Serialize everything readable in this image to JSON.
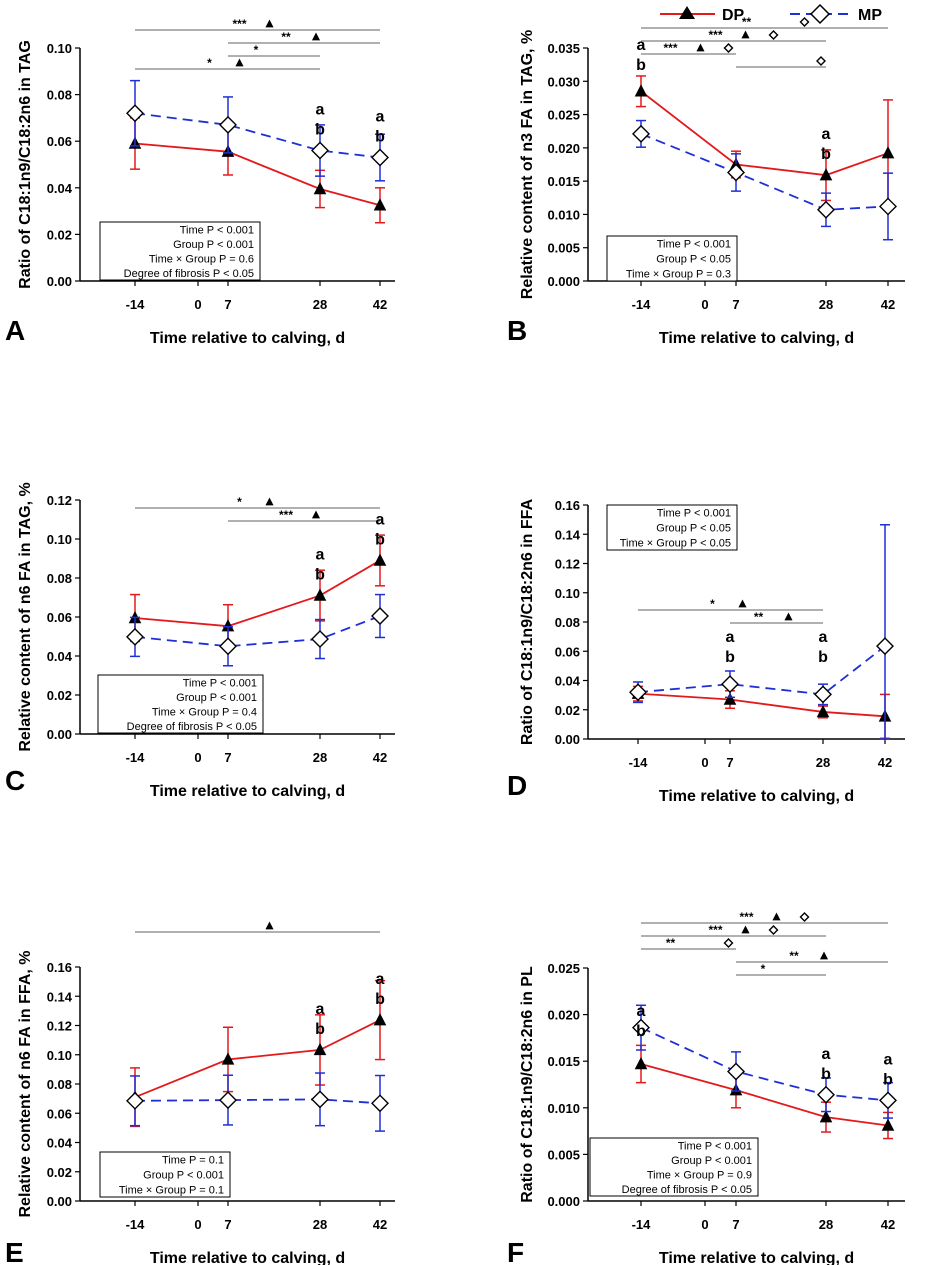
{
  "figure": {
    "legend": {
      "series_a": "DP",
      "series_b": "MP"
    },
    "colors": {
      "dp": "#e31a1c",
      "mp": "#1f2fd6",
      "axis": "#000000",
      "sig_line": "#808080"
    }
  },
  "chart_data": [
    {
      "panel": "A",
      "type": "line",
      "title": "",
      "xlabel": "Time relative to calving, d",
      "ylabel": "Ratio of C18:1n9/C18:2n6 in TAG",
      "x_ticks": [
        "-14",
        "0",
        "7",
        "28",
        "42"
      ],
      "x": [
        -14,
        7,
        28,
        42
      ],
      "ylim": [
        0,
        0.1
      ],
      "y_ticks": [
        "0.00",
        "0.02",
        "0.04",
        "0.06",
        "0.08",
        "0.10"
      ],
      "series": [
        {
          "name": "DP",
          "values": [
            0.059,
            0.0555,
            0.0395,
            0.0325
          ],
          "err": [
            0.011,
            0.01,
            0.008,
            0.0075
          ]
        },
        {
          "name": "MP",
          "values": [
            0.072,
            0.067,
            0.056,
            0.053
          ],
          "err": [
            0.014,
            0.012,
            0.011,
            0.01
          ]
        }
      ],
      "stats": [
        "Time P < 0.001",
        "Group P < 0.001",
        "Time × Group P = 0.6",
        "Degree of fibrosis P < 0.05"
      ],
      "comparisons": [
        {
          "from": -14,
          "to": 42,
          "label": "***",
          "marker": "tri"
        },
        {
          "from": 7,
          "to": 42,
          "label": "**",
          "marker": "tri"
        },
        {
          "from": 7,
          "to": 28,
          "label": "*",
          "marker": ""
        },
        {
          "from": -14,
          "to": 28,
          "label": "*",
          "marker": "tri"
        }
      ],
      "point_labels": [
        {
          "x": 28,
          "text": [
            "a",
            "b"
          ]
        },
        {
          "x": 42,
          "text": [
            "a",
            "b"
          ]
        }
      ]
    },
    {
      "panel": "B",
      "type": "line",
      "title": "",
      "xlabel": "Time relative to calving, d",
      "ylabel": "Relative content of n3 FA in TAG, %",
      "x_ticks": [
        "-14",
        "0",
        "7",
        "28",
        "42"
      ],
      "x": [
        -14,
        7,
        28,
        42
      ],
      "ylim": [
        0,
        0.035
      ],
      "y_ticks": [
        "0.000",
        "0.005",
        "0.010",
        "0.015",
        "0.020",
        "0.025",
        "0.030",
        "0.035"
      ],
      "series": [
        {
          "name": "DP",
          "values": [
            0.0285,
            0.0175,
            0.0159,
            0.0192
          ],
          "err": [
            0.0023,
            0.002,
            0.0038,
            0.008
          ]
        },
        {
          "name": "MP",
          "values": [
            0.0221,
            0.0163,
            0.0107,
            0.0112
          ],
          "err": [
            0.002,
            0.0028,
            0.0025,
            0.005
          ]
        }
      ],
      "stats": [
        "Time P < 0.001",
        "Group P < 0.05",
        "Time × Group P = 0.3"
      ],
      "comparisons": [
        {
          "from": -14,
          "to": 42,
          "label": "**",
          "marker": "dia"
        },
        {
          "from": -14,
          "to": 28,
          "label": "***",
          "marker": "tridia"
        },
        {
          "from": -14,
          "to": 7,
          "label": "***",
          "marker": "tridia"
        },
        {
          "from": 7,
          "to": 28,
          "label": "",
          "marker": "dia"
        }
      ],
      "point_labels": [
        {
          "x": -14,
          "text": [
            "a"
          ]
        },
        {
          "x": -14,
          "text": [
            "b"
          ]
        },
        {
          "x": 28,
          "text": [
            "a",
            "b"
          ]
        }
      ]
    },
    {
      "panel": "C",
      "type": "line",
      "title": "",
      "xlabel": "Time relative to calving, d",
      "ylabel": "Relative content of n6 FA in TAG, %",
      "x_ticks": [
        "-14",
        "0",
        "7",
        "28",
        "42"
      ],
      "x": [
        -14,
        7,
        28,
        42
      ],
      "ylim": [
        0,
        0.12
      ],
      "y_ticks": [
        "0.00",
        "0.02",
        "0.04",
        "0.06",
        "0.08",
        "0.10",
        "0.12"
      ],
      "series": [
        {
          "name": "DP",
          "values": [
            0.0595,
            0.0553,
            0.071,
            0.089
          ],
          "err": [
            0.012,
            0.011,
            0.013,
            0.013
          ]
        },
        {
          "name": "MP",
          "values": [
            0.0498,
            0.045,
            0.0487,
            0.0605
          ],
          "err": [
            0.01,
            0.01,
            0.01,
            0.011
          ]
        }
      ],
      "stats": [
        "Time P < 0.001",
        "Group P < 0.001",
        "Time × Group P = 0.4",
        "Degree of fibrosis P < 0.05"
      ],
      "comparisons": [
        {
          "from": -14,
          "to": 42,
          "label": "*",
          "marker": "tri"
        },
        {
          "from": 7,
          "to": 42,
          "label": "***",
          "marker": "tri"
        }
      ],
      "point_labels": [
        {
          "x": 28,
          "text": [
            "a",
            "b"
          ]
        },
        {
          "x": 42,
          "text": [
            "a",
            "b"
          ]
        }
      ]
    },
    {
      "panel": "D",
      "type": "line",
      "title": "",
      "xlabel": "Time relative to calving, d",
      "ylabel": "Ratio of C18:1n9/C18:2n6 in FFA",
      "x_ticks": [
        "-14",
        "0",
        "7",
        "28",
        "42"
      ],
      "x": [
        -14,
        7,
        28,
        42
      ],
      "ylim": [
        0,
        0.16
      ],
      "y_ticks": [
        "0.00",
        "0.02",
        "0.04",
        "0.06",
        "0.08",
        "0.10",
        "0.12",
        "0.14",
        "0.16"
      ],
      "series": [
        {
          "name": "DP",
          "values": [
            0.031,
            0.027,
            0.0185,
            0.0155
          ],
          "err": [
            0.005,
            0.006,
            0.004,
            0.015
          ]
        },
        {
          "name": "MP",
          "values": [
            0.032,
            0.0375,
            0.0305,
            0.0635
          ],
          "err": [
            0.007,
            0.009,
            0.007,
            0.083
          ]
        }
      ],
      "stats": [
        "Time P < 0.001",
        "Group P < 0.05",
        "Time × Group P < 0.05"
      ],
      "comparisons": [
        {
          "from": -14,
          "to": 28,
          "label": "*",
          "marker": "tri"
        },
        {
          "from": 7,
          "to": 28,
          "label": "**",
          "marker": "tri"
        }
      ],
      "point_labels": [
        {
          "x": 7,
          "text": [
            "a",
            "b"
          ]
        },
        {
          "x": 28,
          "text": [
            "a",
            "b"
          ]
        }
      ]
    },
    {
      "panel": "E",
      "type": "line",
      "title": "",
      "xlabel": "Time relative to calving, d",
      "ylabel": "Relative content of n6 FA in FFA, %",
      "x_ticks": [
        "-14",
        "0",
        "7",
        "28",
        "42"
      ],
      "x": [
        -14,
        7,
        28,
        42
      ],
      "ylim": [
        0,
        0.16
      ],
      "y_ticks": [
        "0.00",
        "0.02",
        "0.04",
        "0.06",
        "0.08",
        "0.10",
        "0.12",
        "0.14",
        "0.16"
      ],
      "series": [
        {
          "name": "DP",
          "values": [
            0.071,
            0.0968,
            0.1033,
            0.1237
          ],
          "err": [
            0.02,
            0.022,
            0.024,
            0.027
          ]
        },
        {
          "name": "MP",
          "values": [
            0.0685,
            0.069,
            0.0695,
            0.0668
          ],
          "err": [
            0.017,
            0.017,
            0.018,
            0.019
          ]
        }
      ],
      "stats": [
        "Time P = 0.1",
        "Group P < 0.001",
        "Time × Group P = 0.1"
      ],
      "comparisons": [
        {
          "from": -14,
          "to": 42,
          "label": "",
          "marker": "tri"
        }
      ],
      "point_labels": [
        {
          "x": 28,
          "text": [
            "a",
            "b"
          ]
        },
        {
          "x": 42,
          "text": [
            "a",
            "b"
          ]
        }
      ]
    },
    {
      "panel": "F",
      "type": "line",
      "title": "",
      "xlabel": "Time relative to calving, d",
      "ylabel": "Ratio of C18:1n9/C18:2n6 in PL",
      "x_ticks": [
        "-14",
        "0",
        "7",
        "28",
        "42"
      ],
      "x": [
        -14,
        7,
        28,
        42
      ],
      "ylim": [
        0,
        0.025
      ],
      "y_ticks": [
        "0.000",
        "0.005",
        "0.010",
        "0.015",
        "0.020",
        "0.025"
      ],
      "series": [
        {
          "name": "DP",
          "values": [
            0.0147,
            0.0119,
            0.009,
            0.0081
          ],
          "err": [
            0.002,
            0.0019,
            0.0016,
            0.0014
          ]
        },
        {
          "name": "MP",
          "values": [
            0.0186,
            0.0139,
            0.0114,
            0.0108
          ],
          "err": [
            0.0024,
            0.0021,
            0.0018,
            0.0019
          ]
        }
      ],
      "stats": [
        "Time P < 0.001",
        "Group P < 0.001",
        "Time × Group P = 0.9",
        "Degree of fibrosis P < 0.05"
      ],
      "comparisons": [
        {
          "from": -14,
          "to": 42,
          "label": "***",
          "marker": "tridia"
        },
        {
          "from": -14,
          "to": 28,
          "label": "***",
          "marker": "tridia"
        },
        {
          "from": -14,
          "to": 7,
          "label": "**",
          "marker": "dia"
        },
        {
          "from": 7,
          "to": 42,
          "label": "**",
          "marker": "tri"
        },
        {
          "from": 7,
          "to": 28,
          "label": "*",
          "marker": ""
        }
      ],
      "point_labels": [
        {
          "x": -14,
          "text": [
            "a",
            "b"
          ]
        },
        {
          "x": 28,
          "text": [
            "a",
            "b"
          ]
        },
        {
          "x": 42,
          "text": [
            "a",
            "b"
          ]
        }
      ]
    }
  ]
}
